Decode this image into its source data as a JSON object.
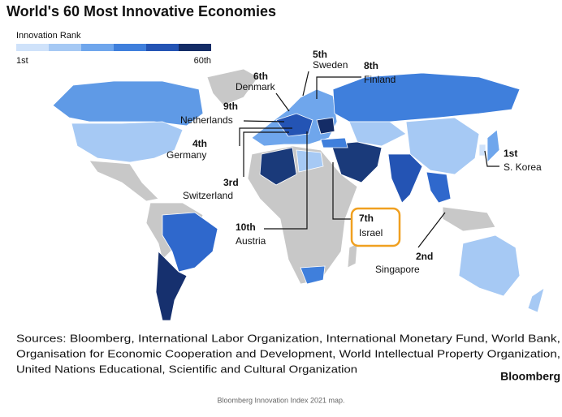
{
  "title": "World's 60 Most Innovative Economies",
  "legend": {
    "title": "Innovation Rank",
    "min_label": "1st",
    "max_label": "60th"
  },
  "callouts": [
    {
      "rank": "5th",
      "country": "Sweden"
    },
    {
      "rank": "6th",
      "country": "Denmark"
    },
    {
      "rank": "8th",
      "country": "Finland"
    },
    {
      "rank": "9th",
      "country": "Netherlands"
    },
    {
      "rank": "4th",
      "country": "Germany"
    },
    {
      "rank": "3rd",
      "country": "Switzerland"
    },
    {
      "rank": "10th",
      "country": "Austria"
    },
    {
      "rank": "7th",
      "country": "Israel"
    },
    {
      "rank": "2nd",
      "country": "Singapore"
    },
    {
      "rank": "1st",
      "country": "S. Korea"
    }
  ],
  "sources": [
    "Sources: Bloomberg, International Labor Organization, International Monetary Fund, World Bank,",
    "Organisation for Economic Cooperation and Development, World Intellectual Property Organization,",
    "United Nations Educational, Scientific and Cultural Organization"
  ],
  "logo": "Bloomberg",
  "caption": "Bloomberg Innovation Index 2021 map."
}
